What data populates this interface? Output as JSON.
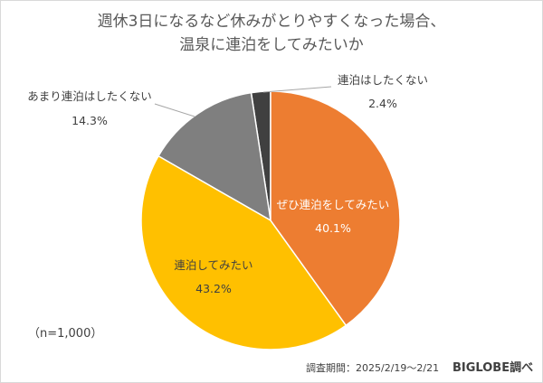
{
  "chart_data": {
    "type": "pie",
    "title_line1": "週休3日になるなど休みがとりやすくなった場合、",
    "title_line2": "温泉に連泊をしてみたいか",
    "start": "top",
    "direction": "clockwise",
    "slices": [
      {
        "label": "ぜひ連泊をしてみたい",
        "value": 40.1,
        "value_label": "40.1%",
        "color": "#ED7D31"
      },
      {
        "label": "連泊してみたい",
        "value": 43.2,
        "value_label": "43.2%",
        "color": "#FFC000"
      },
      {
        "label": "あまり連泊はしたくない",
        "value": 14.3,
        "value_label": "14.3%",
        "color": "#7F7F7F"
      },
      {
        "label": "連泊はしたくない",
        "value": 2.4,
        "value_label": "2.4%",
        "color": "#404040"
      }
    ]
  },
  "note_n": "（n=1,000）",
  "survey_period": "調査期間：2025/2/19～2/21",
  "source": "BIGLOBE調べ"
}
